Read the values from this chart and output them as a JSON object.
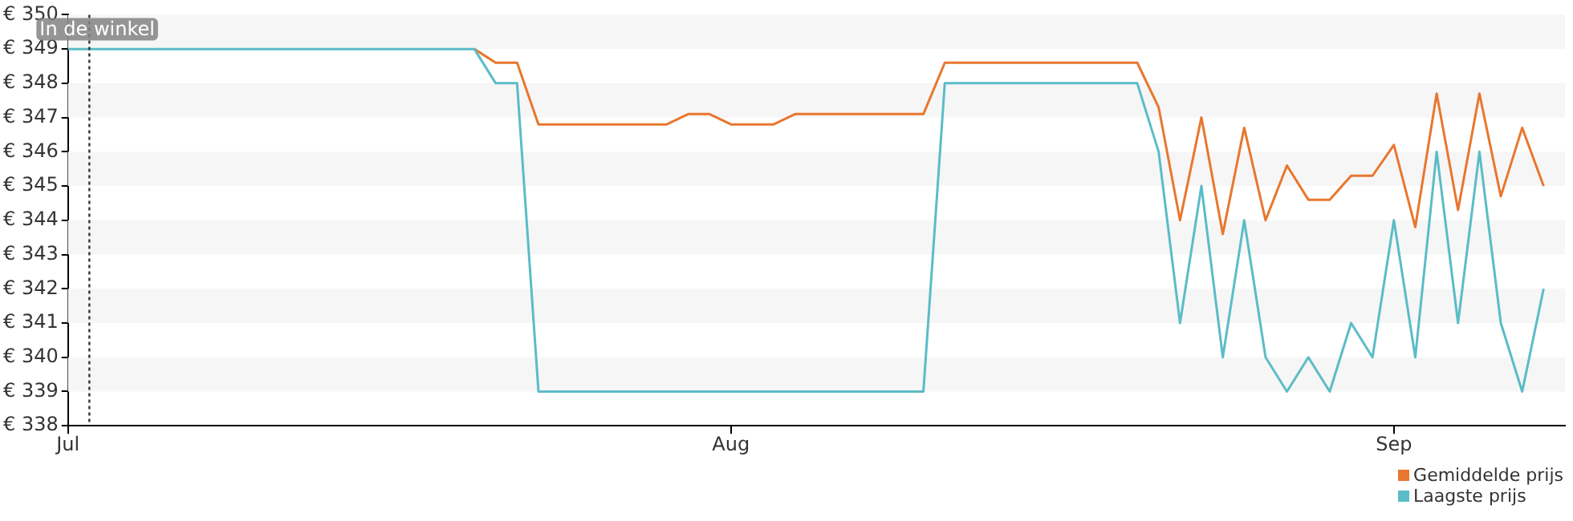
{
  "chart_data": {
    "type": "line",
    "x": [
      "--07-01",
      "--07-02",
      "--07-03",
      "--07-04",
      "--07-05",
      "--07-06",
      "--07-07",
      "--07-08",
      "--07-09",
      "--07-10",
      "--07-11",
      "--07-12",
      "--07-13",
      "--07-14",
      "--07-15",
      "--07-16",
      "--07-17",
      "--07-18",
      "--07-19",
      "--07-20",
      "--07-21",
      "--07-22",
      "--07-23",
      "--07-24",
      "--07-25",
      "--07-26",
      "--07-27",
      "--07-28",
      "--07-29",
      "--07-30",
      "--07-31",
      "--08-01",
      "--08-02",
      "--08-03",
      "--08-04",
      "--08-05",
      "--08-06",
      "--08-07",
      "--08-08",
      "--08-09",
      "--08-10",
      "--08-11",
      "--08-12",
      "--08-13",
      "--08-14",
      "--08-15",
      "--08-16",
      "--08-17",
      "--08-18",
      "--08-19",
      "--08-20",
      "--08-21",
      "--08-22",
      "--08-23",
      "--08-24",
      "--08-25",
      "--08-26",
      "--08-27",
      "--08-28",
      "--08-29",
      "--08-30",
      "--08-31",
      "--09-01",
      "--09-02",
      "--09-03",
      "--09-04",
      "--09-05",
      "--09-06",
      "--09-07",
      "--09-08"
    ],
    "series": [
      {
        "name": "Gemiddelde prijs",
        "color": "#e8772e",
        "values": [
          null,
          null,
          null,
          null,
          null,
          null,
          null,
          null,
          null,
          null,
          null,
          null,
          null,
          null,
          null,
          null,
          null,
          null,
          null,
          349,
          348.6,
          348.6,
          346.8,
          346.8,
          346.8,
          346.8,
          346.8,
          346.8,
          346.8,
          347.1,
          347.1,
          346.8,
          346.8,
          346.8,
          347.1,
          347.1,
          347.1,
          347.1,
          347.1,
          347.1,
          347.1,
          348.6,
          348.6,
          348.6,
          348.6,
          348.6,
          348.6,
          348.6,
          348.6,
          348.6,
          348.6,
          347.3,
          344.0,
          347.0,
          343.6,
          346.7,
          344.0,
          345.6,
          344.6,
          344.6,
          345.3,
          345.3,
          346.2,
          343.8,
          347.7,
          344.3,
          347.7,
          344.7,
          346.7,
          345.0
        ]
      },
      {
        "name": "Laagste prijs",
        "color": "#5bbcc6",
        "values": [
          349,
          349,
          349,
          349,
          349,
          349,
          349,
          349,
          349,
          349,
          349,
          349,
          349,
          349,
          349,
          349,
          349,
          349,
          349,
          349,
          348,
          348,
          339,
          339,
          339,
          339,
          339,
          339,
          339,
          339,
          339,
          339,
          339,
          339,
          339,
          339,
          339,
          339,
          339,
          339,
          339,
          348,
          348,
          348,
          348,
          348,
          348,
          348,
          348,
          348,
          348,
          346,
          341,
          345,
          340,
          344,
          340,
          339,
          340,
          339,
          341,
          340,
          344,
          340,
          346,
          341,
          346,
          341,
          339,
          342
        ]
      }
    ],
    "xlim": [
      "--07-01",
      "--09-09"
    ],
    "xticks": [
      {
        "value": "--07-01",
        "label": "Jul"
      },
      {
        "value": "--08-01",
        "label": "Aug"
      },
      {
        "value": "--09-01",
        "label": "Sep"
      }
    ],
    "ylim": [
      338,
      350
    ],
    "yticks": [
      {
        "value": 338,
        "label": "€ 338"
      },
      {
        "value": 339,
        "label": "€ 339"
      },
      {
        "value": 340,
        "label": "€ 340"
      },
      {
        "value": 341,
        "label": "€ 341"
      },
      {
        "value": 342,
        "label": "€ 342"
      },
      {
        "value": 343,
        "label": "€ 343"
      },
      {
        "value": 344,
        "label": "€ 344"
      },
      {
        "value": 345,
        "label": "€ 345"
      },
      {
        "value": 346,
        "label": "€ 346"
      },
      {
        "value": 347,
        "label": "€ 347"
      },
      {
        "value": 348,
        "label": "€ 348"
      },
      {
        "value": 349,
        "label": "€ 349"
      },
      {
        "value": 350,
        "label": "€ 350"
      }
    ],
    "ref_lines": [
      {
        "axis": "x",
        "value": "--07-02",
        "label": "In de winkel",
        "line_style": "dotted"
      }
    ],
    "bands": [
      {
        "axis": "y",
        "from": 349,
        "to": 350,
        "color": "#f6f6f6"
      },
      {
        "axis": "y",
        "from": 347,
        "to": 348,
        "color": "#f6f6f6"
      },
      {
        "axis": "y",
        "from": 345,
        "to": 346,
        "color": "#f6f6f6"
      },
      {
        "axis": "y",
        "from": 343,
        "to": 344,
        "color": "#f6f6f6"
      },
      {
        "axis": "y",
        "from": 341,
        "to": 342,
        "color": "#f6f6f6"
      },
      {
        "axis": "y",
        "from": 339,
        "to": 340,
        "color": "#f6f6f6"
      }
    ],
    "legend": "bottom right",
    "marker": "none",
    "line_style": "solid"
  }
}
